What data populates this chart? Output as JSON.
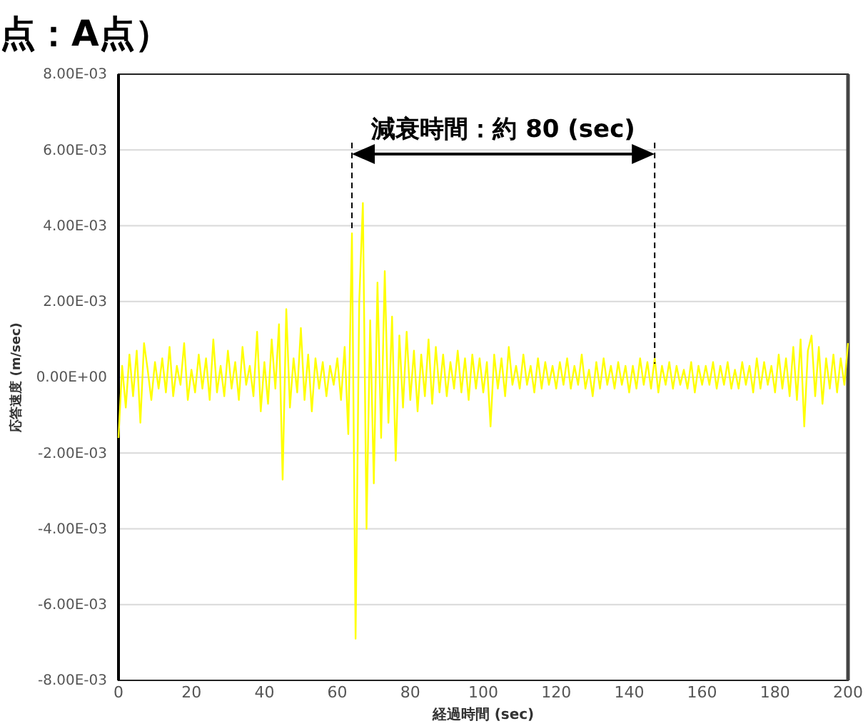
{
  "chart_data": {
    "type": "line",
    "title": "点：A点）",
    "xlabel": "経過時間 (sec)",
    "ylabel": "応答速度 (m/sec)",
    "annotations": [
      "減衰時間：約 80 (sec)"
    ],
    "ref_lines": [
      {
        "axis": "x",
        "value": 64,
        "line_style": "dashed",
        "color": "#000000"
      },
      {
        "axis": "x",
        "value": 147,
        "line_style": "dashed",
        "color": "#000000"
      }
    ],
    "xlim": [
      0,
      200
    ],
    "xticks": [
      0,
      20,
      40,
      60,
      80,
      100,
      120,
      140,
      160,
      180,
      200
    ],
    "ylim": [
      -0.008,
      0.008
    ],
    "yticks": [
      {
        "value": -0.008,
        "label": "-8.00E-03"
      },
      {
        "value": -0.006,
        "label": "-6.00E-03"
      },
      {
        "value": -0.004,
        "label": "-4.00E-03"
      },
      {
        "value": -0.002,
        "label": "-2.00E-03"
      },
      {
        "value": 0,
        "label": "0.00E+00"
      },
      {
        "value": 0.002,
        "label": "2.00E-03"
      },
      {
        "value": 0.004,
        "label": "4.00E-03"
      },
      {
        "value": 0.006,
        "label": "6.00E-03"
      },
      {
        "value": 0.008,
        "label": "8.00E-03"
      }
    ],
    "grid": "y",
    "legend": false,
    "marker": "none",
    "line_style": "solid",
    "series": [
      {
        "color": "#ffff00",
        "x": [
          0,
          1,
          2,
          3,
          4,
          5,
          6,
          7,
          8,
          9,
          10,
          11,
          12,
          13,
          14,
          15,
          16,
          17,
          18,
          19,
          20,
          21,
          22,
          23,
          24,
          25,
          26,
          27,
          28,
          29,
          30,
          31,
          32,
          33,
          34,
          35,
          36,
          37,
          38,
          39,
          40,
          41,
          42,
          43,
          44,
          45,
          46,
          47,
          48,
          49,
          50,
          51,
          52,
          53,
          54,
          55,
          56,
          57,
          58,
          59,
          60,
          61,
          62,
          63,
          64,
          65,
          66,
          67,
          68,
          69,
          70,
          71,
          72,
          73,
          74,
          75,
          76,
          77,
          78,
          79,
          80,
          81,
          82,
          83,
          84,
          85,
          86,
          87,
          88,
          89,
          90,
          91,
          92,
          93,
          94,
          95,
          96,
          97,
          98,
          99,
          100,
          101,
          102,
          103,
          104,
          105,
          106,
          107,
          108,
          109,
          110,
          111,
          112,
          113,
          114,
          115,
          116,
          117,
          118,
          119,
          120,
          121,
          122,
          123,
          124,
          125,
          126,
          127,
          128,
          129,
          130,
          131,
          132,
          133,
          134,
          135,
          136,
          137,
          138,
          139,
          140,
          141,
          142,
          143,
          144,
          145,
          146,
          147,
          148,
          149,
          150,
          151,
          152,
          153,
          154,
          155,
          156,
          157,
          158,
          159,
          160,
          161,
          162,
          163,
          164,
          165,
          166,
          167,
          168,
          169,
          170,
          171,
          172,
          173,
          174,
          175,
          176,
          177,
          178,
          179,
          180,
          181,
          182,
          183,
          184,
          185,
          186,
          187,
          188,
          189,
          190,
          191,
          192,
          193,
          194,
          195,
          196,
          197,
          198,
          199,
          200
        ],
        "values": [
          -0.0016,
          0.0003,
          -0.0008,
          0.0006,
          -0.0005,
          0.0007,
          -0.0012,
          0.0009,
          0.0002,
          -0.0006,
          0.0004,
          -0.0003,
          0.0005,
          -0.0004,
          0.0008,
          -0.0005,
          0.0003,
          -0.0002,
          0.0009,
          -0.0006,
          0.0002,
          -0.0004,
          0.0006,
          -0.0003,
          0.0005,
          -0.0006,
          0.001,
          -0.0004,
          0.0003,
          -0.0005,
          0.0007,
          -0.0003,
          0.0004,
          -0.0006,
          0.0008,
          -0.0002,
          0.0003,
          -0.0005,
          0.0012,
          -0.0009,
          0.0004,
          -0.0007,
          0.001,
          -0.0003,
          0.0014,
          -0.0027,
          0.0018,
          -0.0008,
          0.0005,
          -0.0004,
          0.0013,
          -0.0006,
          0.0006,
          -0.0009,
          0.0005,
          -0.0003,
          0.0004,
          -0.0005,
          0.0003,
          -0.0002,
          0.0005,
          -0.0006,
          0.0008,
          -0.0015,
          0.0038,
          -0.0069,
          0.002,
          0.0046,
          -0.004,
          0.0015,
          -0.0028,
          0.0025,
          -0.0016,
          0.0028,
          -0.0012,
          0.0016,
          -0.0022,
          0.0011,
          -0.0008,
          0.0012,
          -0.0006,
          0.0007,
          -0.0009,
          0.0006,
          -0.0005,
          0.001,
          -0.0007,
          0.0008,
          -0.0004,
          0.0006,
          -0.0005,
          0.0004,
          -0.0003,
          0.0007,
          -0.0004,
          0.0005,
          -0.0006,
          0.0006,
          -0.0003,
          0.0005,
          -0.0004,
          0.0004,
          -0.0013,
          0.0006,
          -0.0003,
          0.0005,
          -0.0005,
          0.0008,
          -0.0002,
          0.0003,
          -0.0003,
          0.0006,
          -0.0002,
          0.0003,
          -0.0004,
          0.0005,
          -0.0003,
          0.0004,
          -0.0002,
          0.0003,
          -0.0003,
          0.0004,
          -0.0002,
          0.0005,
          -0.0003,
          0.0003,
          -0.0002,
          0.0006,
          -0.0003,
          0.0002,
          -0.0005,
          0.0004,
          -0.0003,
          0.0005,
          -0.0002,
          0.0003,
          -0.0003,
          0.0004,
          -0.0002,
          0.0003,
          -0.0004,
          0.0003,
          -0.0003,
          0.0005,
          -0.0002,
          0.0004,
          -0.0003,
          0.0005,
          -0.0004,
          0.0003,
          -0.0002,
          0.0004,
          -0.0003,
          0.0003,
          -0.0002,
          0.0002,
          -0.0003,
          0.0004,
          -0.0004,
          0.0003,
          -0.0002,
          0.0003,
          -0.0002,
          0.0004,
          -0.0003,
          0.0003,
          -0.0002,
          0.0004,
          -0.0003,
          0.0002,
          -0.0003,
          0.0004,
          -0.0002,
          0.0003,
          -0.0004,
          0.0005,
          -0.0003,
          0.0004,
          -0.0002,
          0.0003,
          -0.0004,
          0.0006,
          -0.0003,
          0.0005,
          -0.0005,
          0.0008,
          -0.0006,
          0.001,
          -0.0013,
          0.0007,
          0.0011,
          -0.0005,
          0.0008,
          -0.0007,
          0.0005,
          -0.0003,
          0.0006,
          -0.0004,
          0.0005,
          -0.0002,
          0.0009
        ]
      }
    ]
  }
}
